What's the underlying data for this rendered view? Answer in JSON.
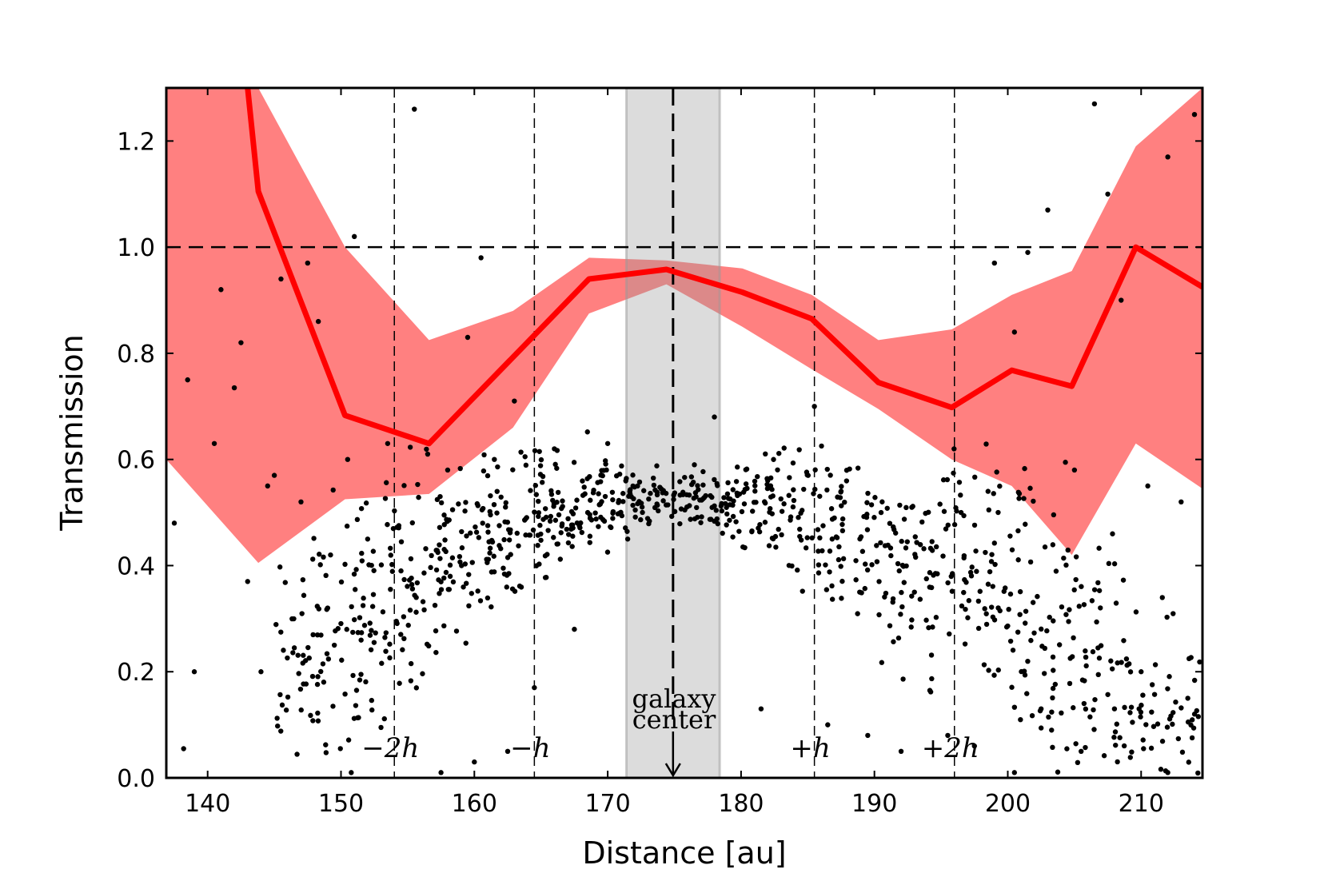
{
  "chart_data": {
    "type": "scatter",
    "xlabel": "Distance [au]",
    "ylabel": "Transmission",
    "xlim": [
      136.9,
      214.6
    ],
    "ylim": [
      0.0,
      1.3
    ],
    "x_ticks": [
      140,
      150,
      160,
      170,
      180,
      190,
      200,
      210
    ],
    "y_ticks": [
      0.0,
      0.2,
      0.4,
      0.6,
      0.8,
      1.0,
      1.2
    ],
    "x_tick_labels": [
      "140",
      "150",
      "160",
      "170",
      "180",
      "190",
      "200",
      "210"
    ],
    "y_tick_labels": [
      "0.0",
      "0.2",
      "0.4",
      "0.6",
      "0.8",
      "1.0",
      "1.2"
    ],
    "grid": false,
    "reference_line_y": 1.0,
    "galaxy_center_x": 174.9,
    "galaxy_center_band": [
      171.4,
      178.4
    ],
    "h_lines": [
      {
        "x": 154.0,
        "label": "−2h"
      },
      {
        "x": 164.5,
        "label": "−h"
      },
      {
        "x": 185.5,
        "label": "+h"
      },
      {
        "x": 196.0,
        "label": "+2h"
      }
    ],
    "annotation": {
      "line1": "galaxy",
      "line2": "center"
    },
    "mean_line": {
      "color": "#ff0000",
      "x": [
        143.0,
        143.8,
        150.3,
        156.6,
        168.6,
        174.4,
        180.1,
        185.3,
        190.3,
        195.8,
        200.3,
        204.8,
        209.6,
        214.6
      ],
      "y": [
        1.3,
        1.105,
        0.683,
        0.63,
        0.94,
        0.958,
        0.915,
        0.865,
        0.745,
        0.698,
        0.768,
        0.738,
        1.0,
        0.925
      ]
    },
    "band": {
      "color": "#ff8080",
      "x": [
        136.9,
        143.8,
        150.3,
        156.6,
        162.9,
        168.6,
        174.4,
        180.1,
        185.3,
        190.3,
        195.8,
        200.3,
        204.8,
        209.6,
        214.6
      ],
      "upper": [
        1.3,
        1.3,
        1.0,
        0.825,
        0.88,
        0.98,
        0.975,
        0.96,
        0.91,
        0.825,
        0.845,
        0.91,
        0.955,
        1.19,
        1.3
      ],
      "lower": [
        0.6,
        0.405,
        0.525,
        0.535,
        0.66,
        0.875,
        0.93,
        0.85,
        0.77,
        0.695,
        0.6,
        0.55,
        0.42,
        0.63,
        0.545
      ]
    },
    "series": [
      {
        "points": [
          [
            137.5,
            0.48
          ],
          [
            138.5,
            0.75
          ],
          [
            139.0,
            0.2
          ],
          [
            141.0,
            0.92
          ],
          [
            142.0,
            0.735
          ],
          [
            143.0,
            0.37
          ],
          [
            144.0,
            0.2
          ],
          [
            144.5,
            0.55
          ],
          [
            145.5,
            0.94
          ],
          [
            146.5,
            0.245
          ],
          [
            147.5,
            0.97
          ],
          [
            148.3,
            0.86
          ],
          [
            149.5,
            0.25
          ],
          [
            150.5,
            0.6
          ],
          [
            151.0,
            1.02
          ],
          [
            152.0,
            0.45
          ],
          [
            153.5,
            0.63
          ],
          [
            154.5,
            0.39
          ],
          [
            155.5,
            1.26
          ],
          [
            156.5,
            0.61
          ],
          [
            158.0,
            0.58
          ],
          [
            159.5,
            0.83
          ],
          [
            160.5,
            0.98
          ],
          [
            161.5,
            0.6
          ],
          [
            163.0,
            0.71
          ],
          [
            166.0,
            0.62
          ],
          [
            168.5,
            0.5
          ],
          [
            170.0,
            0.63
          ],
          [
            171.5,
            0.45
          ],
          [
            176.5,
            0.59
          ],
          [
            178.0,
            0.68
          ],
          [
            182.0,
            0.56
          ],
          [
            185.5,
            0.7
          ],
          [
            187.5,
            0.54
          ],
          [
            190.5,
            0.5
          ],
          [
            193.0,
            0.35
          ],
          [
            196.5,
            0.5
          ],
          [
            199.0,
            0.97
          ],
          [
            200.5,
            0.84
          ],
          [
            201.5,
            0.99
          ],
          [
            203.0,
            1.07
          ],
          [
            205.0,
            0.58
          ],
          [
            206.5,
            1.27
          ],
          [
            207.5,
            1.1
          ],
          [
            208.5,
            0.9
          ],
          [
            210.5,
            0.55
          ],
          [
            212.0,
            1.17
          ],
          [
            213.0,
            0.52
          ],
          [
            214.0,
            1.25
          ],
          [
            138.2,
            0.055
          ],
          [
            140.5,
            0.63
          ],
          [
            142.5,
            0.82
          ],
          [
            145.0,
            0.57
          ],
          [
            147.0,
            0.52
          ],
          [
            149.0,
            0.32
          ],
          [
            151.5,
            0.195
          ],
          [
            153.0,
            0.095
          ],
          [
            157.5,
            0.01
          ],
          [
            160.0,
            0.03
          ],
          [
            162.5,
            0.05
          ],
          [
            164.5,
            0.17
          ],
          [
            167.5,
            0.28
          ],
          [
            181.5,
            0.13
          ],
          [
            186.5,
            0.1
          ],
          [
            189.5,
            0.08
          ],
          [
            192.0,
            0.05
          ],
          [
            195.5,
            0.08
          ],
          [
            197.5,
            0.06
          ],
          [
            200.5,
            0.01
          ],
          [
            202.5,
            0.13
          ],
          [
            205.5,
            0.05
          ],
          [
            208.0,
            0.13
          ],
          [
            210.0,
            0.2
          ],
          [
            212.0,
            0.01
          ],
          [
            213.5,
            0.15
          ]
        ]
      }
    ]
  }
}
